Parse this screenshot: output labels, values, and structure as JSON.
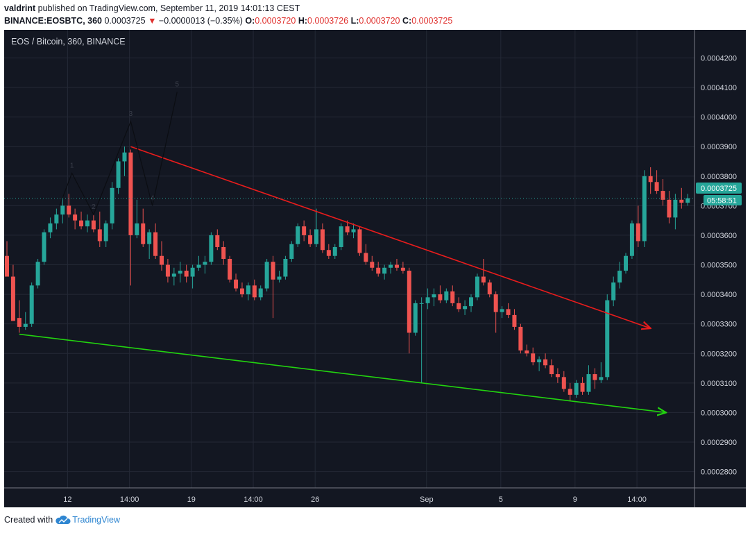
{
  "header": {
    "user": "valdrint",
    "published": "published on TradingView.com, September 11, 2019 14:01:13 CEST",
    "symbol": "BINANCE:EOSBTC, 360",
    "last": "0.0003725",
    "change_arrow": "▼",
    "change": "−0.0000013 (−0.35%)",
    "o_label": "O:",
    "o": "0.0003720",
    "h_label": "H:",
    "h": "0.0003726",
    "l_label": "L:",
    "l": "0.0003720",
    "c_label": "C:",
    "c": "0.0003725"
  },
  "chart_title": "EOS / Bitcoin, 360, BINANCE",
  "price_badge": "0.0003725",
  "countdown_badge": "05:58:51",
  "footer": {
    "created": "Created with",
    "brand": "TradingView"
  },
  "colors": {
    "background": "#131722",
    "up": "#26a69a",
    "down": "#ef5350",
    "resistance": "#e81c1c",
    "support": "#22d30f",
    "price_line": "#26a69a"
  },
  "chart_data": {
    "type": "candlestick",
    "title": "EOS / Bitcoin, 360, BINANCE",
    "ylim": [
      0.0002745,
      0.0004295
    ],
    "y_ticks": [
      "0.0004200",
      "0.0004100",
      "0.0004000",
      "0.0003900",
      "0.0003800",
      "0.0003700",
      "0.0003600",
      "0.0003500",
      "0.0003400",
      "0.0003300",
      "0.0003200",
      "0.0003100",
      "0.0003000",
      "0.0002900",
      "0.0002800"
    ],
    "x_ticks": [
      {
        "label": "12",
        "bar": 9.8
      },
      {
        "label": "14:00",
        "bar": 19.8
      },
      {
        "label": "19",
        "bar": 29.8
      },
      {
        "label": "14:00",
        "bar": 39.8
      },
      {
        "label": "26",
        "bar": 49.8
      },
      {
        "label": "Sep",
        "bar": 67.8
      },
      {
        "label": "5",
        "bar": 79.8
      },
      {
        "label": "9",
        "bar": 91.8
      },
      {
        "label": "14:00",
        "bar": 101.8
      }
    ],
    "candles": [
      [
        0.000353,
        0.000358,
        0.000347,
        0.000346
      ],
      [
        0.000346,
        0.00035,
        0.000332,
        0.000331
      ],
      [
        0.000332,
        0.000338,
        0.000327,
        0.000329
      ],
      [
        0.000329,
        0.000334,
        0.000328,
        0.00033
      ],
      [
        0.00033,
        0.000344,
        0.000329,
        0.000343
      ],
      [
        0.000343,
        0.000352,
        0.000342,
        0.000351
      ],
      [
        0.000351,
        0.000362,
        0.00035,
        0.000361
      ],
      [
        0.000361,
        0.000366,
        0.000359,
        0.000364
      ],
      [
        0.000364,
        0.000369,
        0.000362,
        0.000367
      ],
      [
        0.000367,
        0.000373,
        0.000364,
        0.00037
      ],
      [
        0.00037,
        0.000374,
        0.000366,
        0.000367
      ],
      [
        0.000367,
        0.000369,
        0.000362,
        0.000365
      ],
      [
        0.000365,
        0.000368,
        0.000362,
        0.000363
      ],
      [
        0.000363,
        0.000367,
        0.000361,
        0.000365
      ],
      [
        0.000365,
        0.000367,
        0.000361,
        0.000362
      ],
      [
        0.000362,
        0.000368,
        0.000356,
        0.000358
      ],
      [
        0.000358,
        0.000365,
        0.000356,
        0.000364
      ],
      [
        0.000364,
        0.000378,
        0.000362,
        0.000376
      ],
      [
        0.000376,
        0.000386,
        0.000374,
        0.000385
      ],
      [
        0.000385,
        0.00039,
        0.00038,
        0.000388
      ],
      [
        0.000388,
        0.000389,
        0.000343,
        0.00036
      ],
      [
        0.00036,
        0.000372,
        0.000359,
        0.000364
      ],
      [
        0.000364,
        0.000369,
        0.000356,
        0.000357
      ],
      [
        0.000357,
        0.000362,
        0.000352,
        0.000361
      ],
      [
        0.000361,
        0.000364,
        0.000352,
        0.000353
      ],
      [
        0.000353,
        0.000358,
        0.000348,
        0.00035
      ],
      [
        0.00035,
        0.000352,
        0.000344,
        0.000346
      ],
      [
        0.000346,
        0.000349,
        0.000343,
        0.000347
      ],
      [
        0.000347,
        0.000351,
        0.000344,
        0.000348
      ],
      [
        0.000348,
        0.00035,
        0.000344,
        0.000346
      ],
      [
        0.000346,
        0.00035,
        0.000342,
        0.000349
      ],
      [
        0.000349,
        0.000353,
        0.000348,
        0.00035
      ],
      [
        0.00035,
        0.000353,
        0.000347,
        0.000351
      ],
      [
        0.000351,
        0.000361,
        0.00035,
        0.00036
      ],
      [
        0.00036,
        0.000362,
        0.000355,
        0.000356
      ],
      [
        0.000356,
        0.000358,
        0.00035,
        0.000352
      ],
      [
        0.000352,
        0.000353,
        0.000344,
        0.000345
      ],
      [
        0.000345,
        0.000347,
        0.000341,
        0.000342
      ],
      [
        0.000342,
        0.000344,
        0.000339,
        0.00034
      ],
      [
        0.00034,
        0.000344,
        0.000338,
        0.000343
      ],
      [
        0.000343,
        0.000345,
        0.000338,
        0.000339
      ],
      [
        0.000339,
        0.000343,
        0.000338,
        0.000342
      ],
      [
        0.000342,
        0.000352,
        0.000341,
        0.000351
      ],
      [
        0.000351,
        0.000353,
        0.000332,
        0.000345
      ],
      [
        0.000345,
        0.000348,
        0.000344,
        0.000346
      ],
      [
        0.000346,
        0.000353,
        0.000345,
        0.000352
      ],
      [
        0.000352,
        0.000358,
        0.000351,
        0.000357
      ],
      [
        0.000357,
        0.000364,
        0.000356,
        0.000363
      ],
      [
        0.000363,
        0.000365,
        0.000358,
        0.00036
      ],
      [
        0.00036,
        0.000362,
        0.000356,
        0.000357
      ],
      [
        0.000357,
        0.000369,
        0.000356,
        0.000362
      ],
      [
        0.000362,
        0.000364,
        0.000354,
        0.000355
      ],
      [
        0.000355,
        0.000357,
        0.000352,
        0.000353
      ],
      [
        0.000353,
        0.000357,
        0.000352,
        0.000356
      ],
      [
        0.000356,
        0.000364,
        0.000355,
        0.000363
      ],
      [
        0.000363,
        0.000365,
        0.00036,
        0.000361
      ],
      [
        0.000361,
        0.000364,
        0.000359,
        0.000362
      ],
      [
        0.000362,
        0.000363,
        0.000353,
        0.000354
      ],
      [
        0.000354,
        0.000357,
        0.00035,
        0.000351
      ],
      [
        0.000351,
        0.000353,
        0.000348,
        0.000349
      ],
      [
        0.000349,
        0.000351,
        0.000346,
        0.000347
      ],
      [
        0.000347,
        0.00035,
        0.000345,
        0.000349
      ],
      [
        0.000349,
        0.000351,
        0.000347,
        0.00035
      ],
      [
        0.00035,
        0.000352,
        0.000348,
        0.000349
      ],
      [
        0.000349,
        0.000351,
        0.000347,
        0.000348
      ],
      [
        0.000348,
        0.000349,
        0.00032,
        0.000327
      ],
      [
        0.000327,
        0.000338,
        0.000326,
        0.000337
      ],
      [
        0.000337,
        0.000339,
        0.00031,
        0.000337
      ],
      [
        0.000337,
        0.000342,
        0.000335,
        0.000339
      ],
      [
        0.000339,
        0.000342,
        0.000336,
        0.00034
      ],
      [
        0.00034,
        0.000343,
        0.000337,
        0.000338
      ],
      [
        0.000338,
        0.000342,
        0.000337,
        0.000341
      ],
      [
        0.000341,
        0.000343,
        0.000336,
        0.000337
      ],
      [
        0.000337,
        0.000339,
        0.000334,
        0.000335
      ],
      [
        0.000335,
        0.000338,
        0.000333,
        0.000336
      ],
      [
        0.000336,
        0.00034,
        0.000334,
        0.000339
      ],
      [
        0.000339,
        0.000347,
        0.000338,
        0.000346
      ],
      [
        0.000346,
        0.000352,
        0.000343,
        0.000344
      ],
      [
        0.000344,
        0.000345,
        0.000339,
        0.00034
      ],
      [
        0.00034,
        0.000341,
        0.000327,
        0.000334
      ],
      [
        0.000334,
        0.000336,
        0.000332,
        0.000335
      ],
      [
        0.000335,
        0.000337,
        0.000332,
        0.000333
      ],
      [
        0.000333,
        0.000335,
        0.000328,
        0.000329
      ],
      [
        0.000329,
        0.00033,
        0.00032,
        0.000321
      ],
      [
        0.000321,
        0.000323,
        0.000319,
        0.00032
      ],
      [
        0.00032,
        0.000322,
        0.000316,
        0.000317
      ],
      [
        0.000317,
        0.000319,
        0.000314,
        0.000318
      ],
      [
        0.000318,
        0.00032,
        0.000315,
        0.000316
      ],
      [
        0.000316,
        0.000318,
        0.000312,
        0.000313
      ],
      [
        0.000313,
        0.000315,
        0.00031,
        0.000312
      ],
      [
        0.000312,
        0.000314,
        0.000307,
        0.000308
      ],
      [
        0.000308,
        0.00031,
        0.000304,
        0.000306
      ],
      [
        0.000306,
        0.000311,
        0.000305,
        0.00031
      ],
      [
        0.00031,
        0.000312,
        0.000306,
        0.000307
      ],
      [
        0.000307,
        0.000316,
        0.000306,
        0.000313
      ],
      [
        0.000313,
        0.000315,
        0.000308,
        0.000311
      ],
      [
        0.000311,
        0.000317,
        0.00031,
        0.000312
      ],
      [
        0.000312,
        0.00034,
        0.000311,
        0.000338
      ],
      [
        0.000338,
        0.000346,
        0.000336,
        0.000344
      ],
      [
        0.000344,
        0.000351,
        0.000342,
        0.000348
      ],
      [
        0.000348,
        0.000354,
        0.000347,
        0.000353
      ],
      [
        0.000353,
        0.000365,
        0.000352,
        0.000364
      ],
      [
        0.000364,
        0.00037,
        0.000356,
        0.000358
      ],
      [
        0.000358,
        0.000382,
        0.000356,
        0.00038
      ],
      [
        0.00038,
        0.000383,
        0.000374,
        0.000378
      ],
      [
        0.000378,
        0.000382,
        0.000374,
        0.000375
      ],
      [
        0.000375,
        0.000379,
        0.00037,
        0.000372
      ],
      [
        0.000372,
        0.000375,
        0.000364,
        0.000366
      ],
      [
        0.000366,
        0.000374,
        0.000362,
        0.000372
      ],
      [
        0.000372,
        0.000376,
        0.000369,
        0.000371
      ],
      [
        0.000371,
        0.000374,
        0.00037,
        0.0003725
      ]
    ],
    "resistance_line": {
      "from": {
        "bar": 20,
        "price": 0.00039
      },
      "to": {
        "bar": 104,
        "price": 0.0003285
      }
    },
    "support_line": {
      "from": {
        "bar": 2,
        "price": 0.0003265
      },
      "to": {
        "bar": 106.5,
        "price": 0.0003
      }
    },
    "wave": {
      "points": [
        [
          8.5,
          0.00037
        ],
        [
          10.5,
          0.000381
        ],
        [
          14,
          0.000367
        ],
        [
          20,
          0.0003985
        ],
        [
          23.5,
          0.00037
        ],
        [
          27.5,
          0.0004085
        ]
      ],
      "labels": [
        "1",
        "2",
        "3",
        "4",
        "5"
      ]
    },
    "last_price": 0.0003725
  }
}
